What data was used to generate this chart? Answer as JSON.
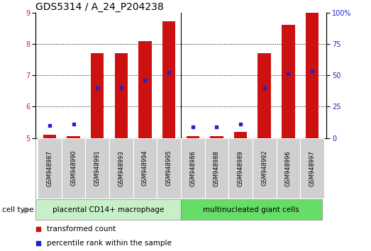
{
  "title": "GDS5314 / A_24_P204238",
  "samples": [
    "GSM948987",
    "GSM948990",
    "GSM948991",
    "GSM948993",
    "GSM948994",
    "GSM948995",
    "GSM948986",
    "GSM948988",
    "GSM948989",
    "GSM948992",
    "GSM948996",
    "GSM948997"
  ],
  "group1_label": "placental CD14+ macrophage",
  "group2_label": "multinucleated giant cells",
  "group1_count": 6,
  "group2_count": 6,
  "red_values": [
    5.1,
    5.05,
    7.7,
    7.7,
    8.1,
    8.72,
    5.05,
    5.05,
    5.2,
    7.7,
    8.62,
    9.0
  ],
  "blue_values": [
    5.4,
    5.45,
    6.6,
    6.6,
    6.85,
    7.1,
    5.35,
    5.35,
    5.45,
    6.6,
    7.05,
    7.15
  ],
  "ylim": [
    5,
    9
  ],
  "yticks": [
    5,
    6,
    7,
    8,
    9
  ],
  "y2ticks": [
    0,
    25,
    50,
    75,
    100
  ],
  "y2lim": [
    0,
    100
  ],
  "bar_color": "#cc1111",
  "dot_color": "#2222cc",
  "group1_bg": "#c8f0c8",
  "group2_bg": "#66dd66",
  "sample_box_color": "#d0d0d0",
  "cell_type_label": "cell type",
  "legend_red": "transformed count",
  "legend_blue": "percentile rank within the sample",
  "bar_width": 0.55,
  "bar_base": 5.0,
  "title_fontsize": 10,
  "label_fontsize": 7.5,
  "tick_fontsize": 7,
  "sample_fontsize": 6,
  "cell_label_fontsize": 7.5
}
